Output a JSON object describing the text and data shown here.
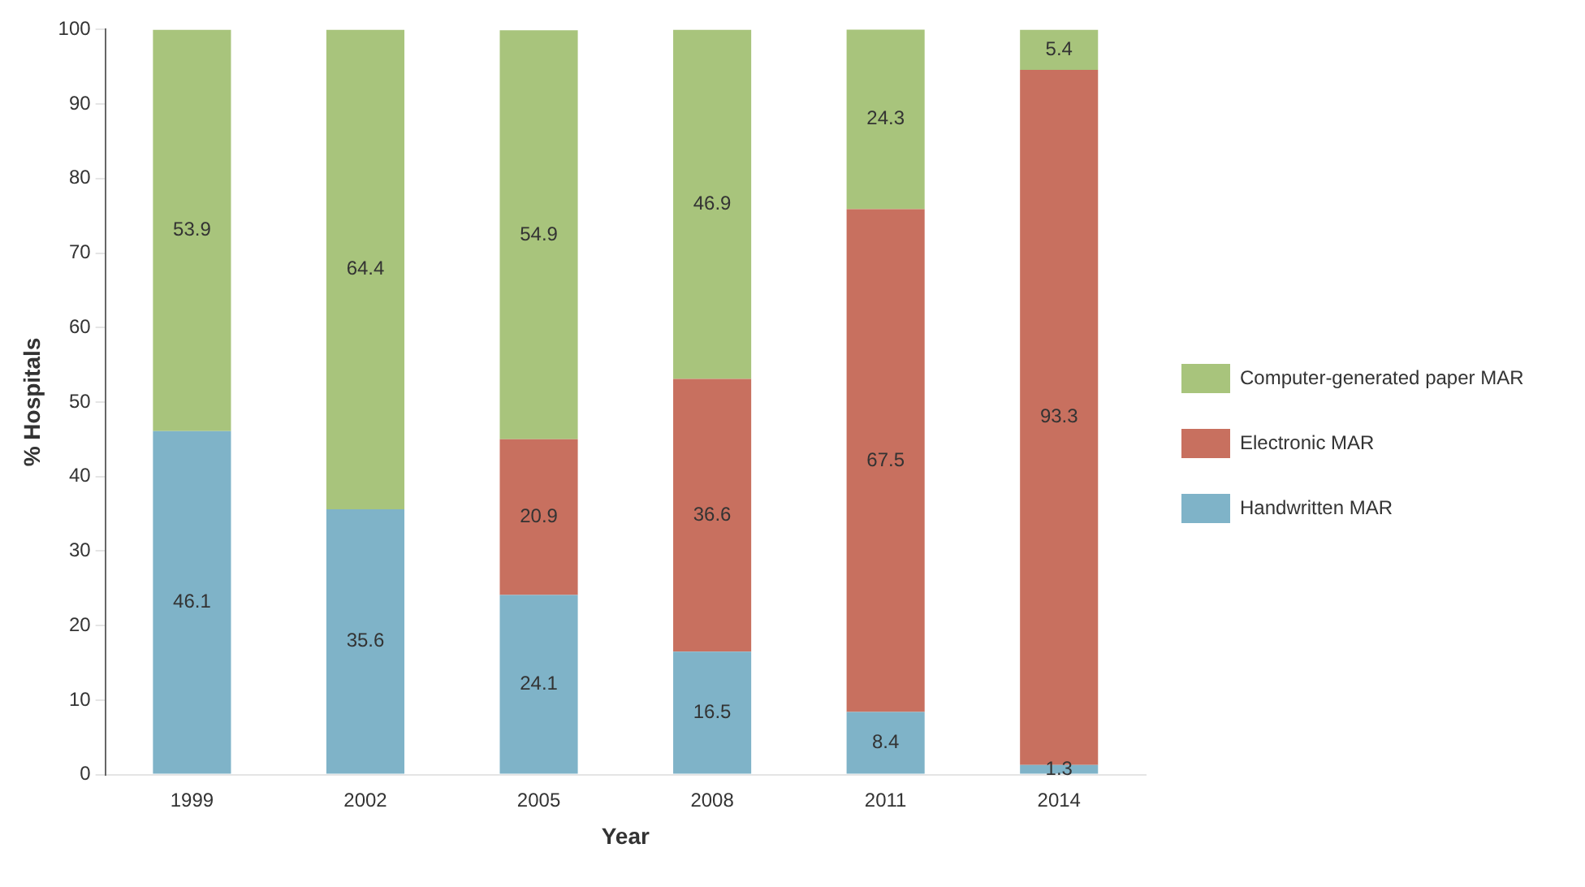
{
  "chart_data": {
    "type": "bar",
    "stacked": true,
    "xlabel": "Year",
    "ylabel": "% Hospitals",
    "categories": [
      "1999",
      "2002",
      "2005",
      "2008",
      "2011",
      "2014"
    ],
    "series": [
      {
        "name": "Handwritten MAR",
        "color": "#7fb3c8",
        "values": [
          46.1,
          35.6,
          24.1,
          16.5,
          8.4,
          1.3
        ]
      },
      {
        "name": "Electronic MAR",
        "color": "#c8705f",
        "values": [
          null,
          null,
          20.9,
          36.6,
          67.5,
          93.3
        ]
      },
      {
        "name": "Computer-generated paper MAR",
        "color": "#a8c47c",
        "values": [
          53.9,
          64.4,
          54.9,
          46.9,
          24.3,
          5.4
        ]
      }
    ],
    "ylim": [
      0,
      100
    ],
    "yticks": [
      0,
      10,
      20,
      30,
      40,
      50,
      60,
      70,
      80,
      90,
      100
    ],
    "data_labels": true,
    "legend": "right",
    "grid": false
  }
}
